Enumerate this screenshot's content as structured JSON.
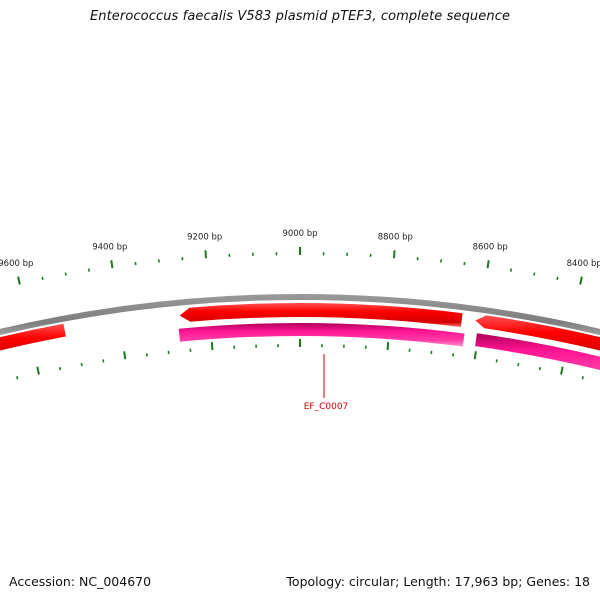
{
  "map": {
    "title": "Enterococcus faecalis V583 plasmid pTEF3, complete sequence",
    "footer_left": "Accession: NC_004670",
    "footer_right": "Topology: circular; Length: 17,963 bp; Genes: 18"
  },
  "scale": {
    "unit": "bp",
    "major_labels": [
      "9600 bp",
      "9400 bp",
      "9200 bp",
      "9000 bp",
      "8800 bp",
      "8600 bp",
      "8400 bp"
    ]
  },
  "genes": [
    {
      "label": "EF_C0007",
      "color": "#cc0000"
    }
  ],
  "colors": {
    "forward_feature": "#ff0000",
    "reverse_feature": "#ff1493",
    "backbone": "#808080",
    "ticks": "#1a7a1a",
    "gene_label": "#cc0000"
  }
}
